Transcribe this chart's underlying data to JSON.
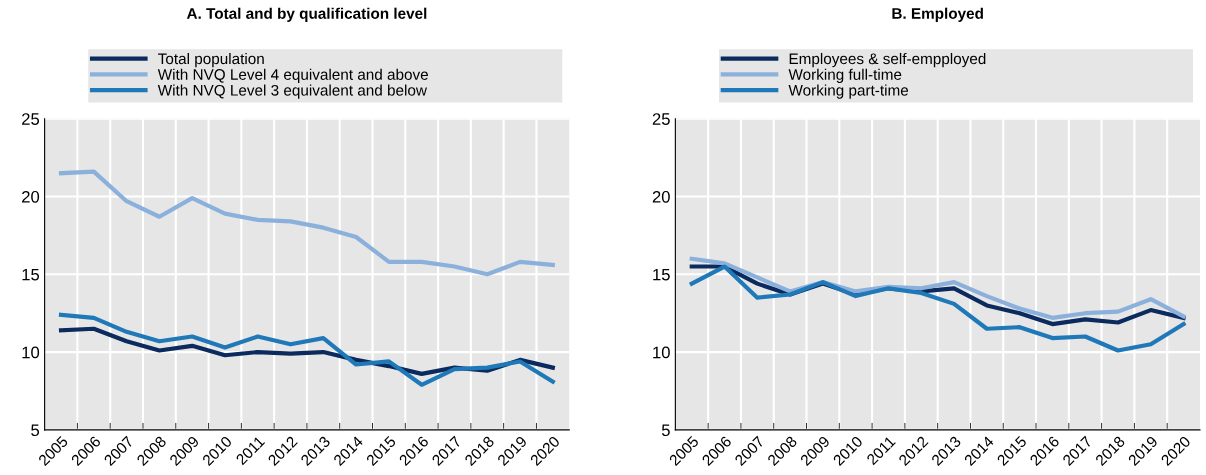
{
  "chart_data": [
    {
      "type": "line",
      "title": "A. Total and by qualification level",
      "categories": [
        "2005",
        "2006",
        "2007",
        "2008",
        "2009",
        "2010",
        "2011",
        "2012",
        "2013",
        "2014",
        "2015",
        "2016",
        "2017",
        "2018",
        "2019",
        "2020"
      ],
      "series": [
        {
          "name": "Total population",
          "color": "#0b2a5e",
          "values": [
            11.4,
            11.5,
            10.7,
            10.1,
            10.4,
            9.8,
            10.0,
            9.9,
            10.0,
            9.5,
            9.1,
            8.6,
            9.0,
            8.8,
            9.5,
            9.0
          ]
        },
        {
          "name": "With NVQ Level 4 equivalent and above",
          "color": "#8cb0dc",
          "values": [
            21.5,
            21.6,
            19.7,
            18.7,
            19.9,
            18.9,
            18.5,
            18.4,
            18.0,
            17.4,
            15.8,
            15.8,
            15.5,
            15.0,
            15.8,
            15.6
          ]
        },
        {
          "name": "With NVQ Level 3 equivalent and below",
          "color": "#1f78b8",
          "values": [
            12.4,
            12.2,
            11.3,
            10.7,
            11.0,
            10.3,
            11.0,
            10.5,
            10.9,
            9.2,
            9.4,
            7.9,
            8.9,
            9.0,
            9.4,
            8.1
          ]
        }
      ],
      "ylim": [
        5,
        25
      ],
      "yticks": [
        5,
        10,
        15,
        20,
        25
      ],
      "grid": true,
      "legend": "top",
      "marker": "none",
      "line_style": "solid"
    },
    {
      "type": "line",
      "title": "B. Employed",
      "categories": [
        "2005",
        "2006",
        "2007",
        "2008",
        "2009",
        "2010",
        "2011",
        "2012",
        "2013",
        "2014",
        "2015",
        "2016",
        "2017",
        "2018",
        "2019",
        "2020"
      ],
      "series": [
        {
          "name": "Employees & self-empployed",
          "color": "#0b2a5e",
          "values": [
            15.5,
            15.5,
            14.4,
            13.7,
            14.4,
            13.7,
            14.1,
            13.9,
            14.1,
            13.0,
            12.5,
            11.8,
            12.1,
            11.9,
            12.7,
            12.2
          ]
        },
        {
          "name": "Working full-time",
          "color": "#8cb0dc",
          "values": [
            16.0,
            15.7,
            14.8,
            13.9,
            14.5,
            13.9,
            14.2,
            14.1,
            14.5,
            13.6,
            12.8,
            12.2,
            12.5,
            12.6,
            13.4,
            12.3
          ]
        },
        {
          "name": "Working part-time",
          "color": "#1f78b8",
          "values": [
            14.4,
            15.5,
            13.5,
            13.7,
            14.5,
            13.6,
            14.1,
            13.8,
            13.1,
            11.5,
            11.6,
            10.9,
            11.0,
            10.1,
            10.5,
            11.8
          ]
        }
      ],
      "ylim": [
        5,
        25
      ],
      "yticks": [
        5,
        10,
        15,
        20,
        25
      ],
      "grid": true,
      "legend": "top",
      "marker": "none",
      "line_style": "solid"
    }
  ]
}
